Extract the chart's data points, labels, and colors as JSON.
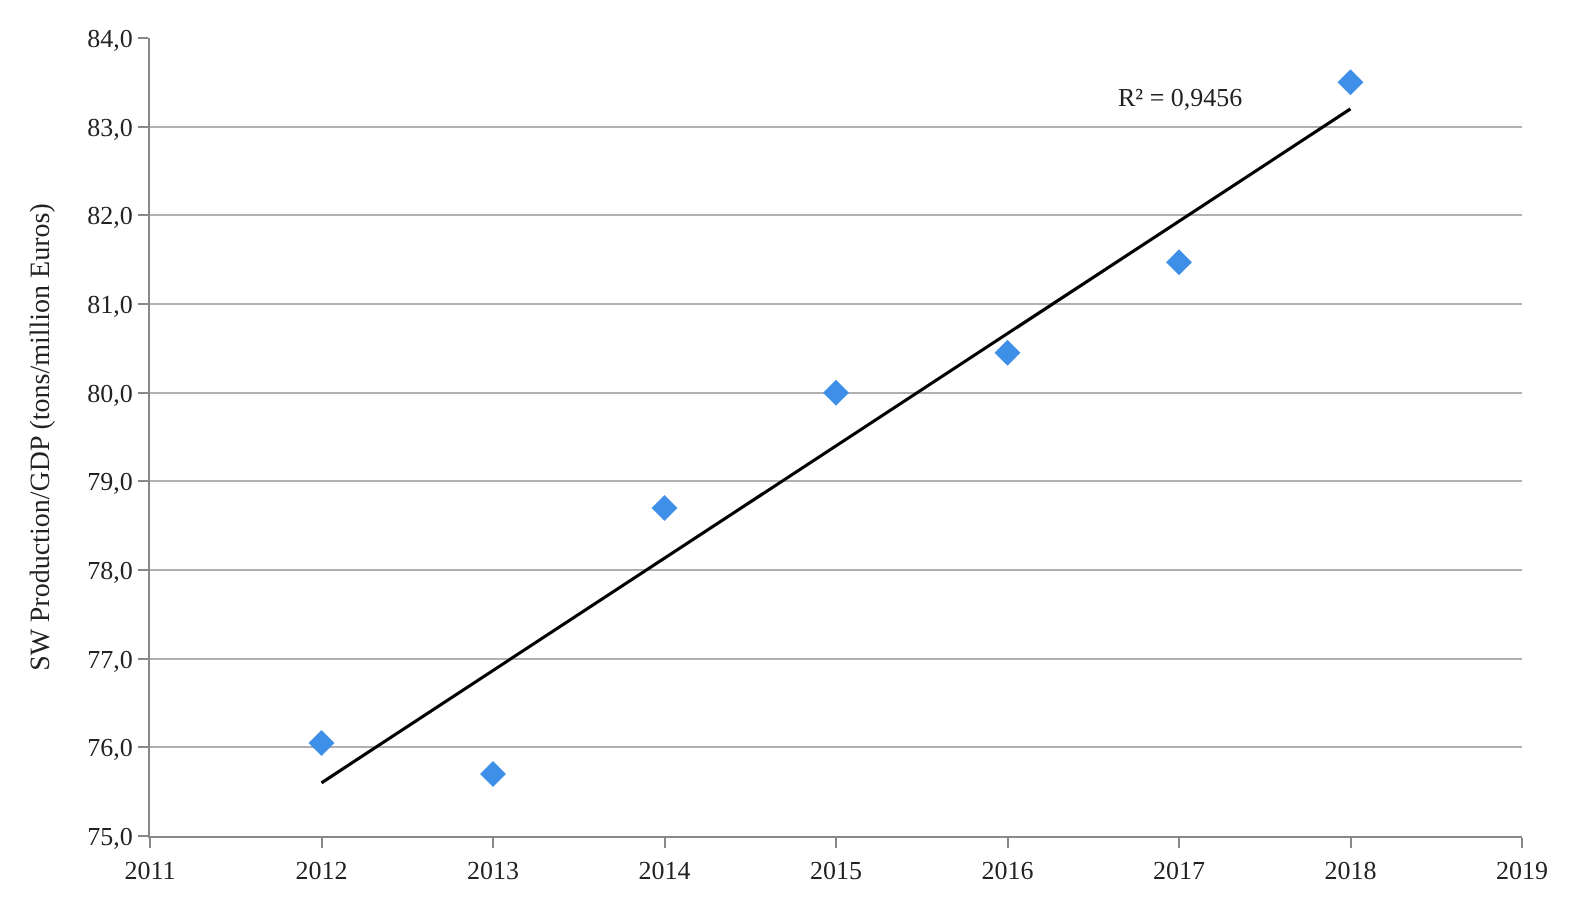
{
  "chart_data": {
    "type": "scatter",
    "ylabel": "SW Production/GDP (tons/million Euros)",
    "xlim": [
      2011,
      2019
    ],
    "xticks": [
      2011,
      2012,
      2013,
      2014,
      2015,
      2016,
      2017,
      2018,
      2019
    ],
    "ylim": [
      75,
      84
    ],
    "yticks": [
      {
        "value": 75,
        "label": "75,0"
      },
      {
        "value": 76,
        "label": "76,0"
      },
      {
        "value": 77,
        "label": "77,0"
      },
      {
        "value": 78,
        "label": "78,0"
      },
      {
        "value": 79,
        "label": "79,0"
      },
      {
        "value": 80,
        "label": "80,0"
      },
      {
        "value": 81,
        "label": "81,0"
      },
      {
        "value": 82,
        "label": "82,0"
      },
      {
        "value": 83,
        "label": "83,0"
      },
      {
        "value": 84,
        "label": "84,0"
      }
    ],
    "grid": "y",
    "legend": false,
    "series": [
      {
        "marker": "diamond",
        "color": "#3d8fe8",
        "x": [
          2012,
          2013,
          2014,
          2015,
          2016,
          2017,
          2018
        ],
        "values": [
          76.05,
          75.7,
          78.7,
          80.0,
          80.45,
          81.47,
          83.5
        ]
      },
      {
        "type": "line",
        "marker": "none",
        "color": "#000000",
        "x": [
          2012,
          2018
        ],
        "values": [
          75.6,
          83.2
        ]
      }
    ],
    "annotations": [
      "R² = 0,9456"
    ]
  }
}
